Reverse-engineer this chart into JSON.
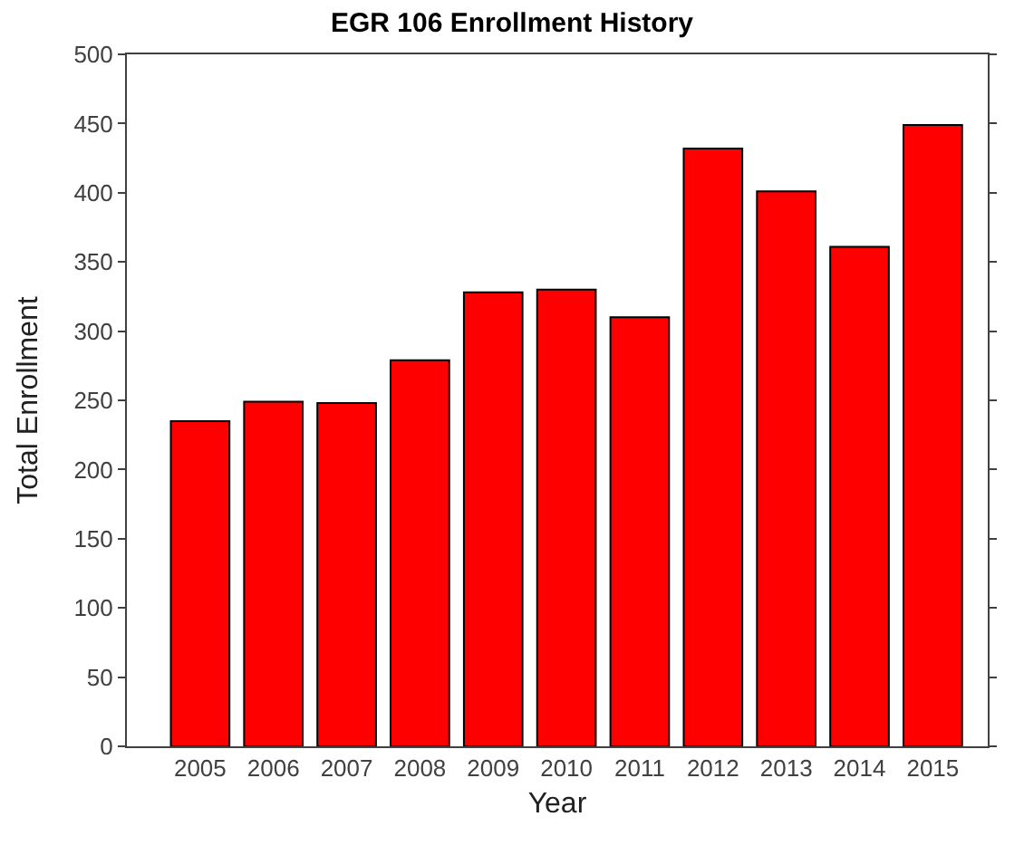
{
  "chart_data": {
    "type": "bar",
    "title": "EGR 106 Enrollment History",
    "xlabel": "Year",
    "ylabel": "Total Enrollment",
    "categories": [
      "2005",
      "2006",
      "2007",
      "2008",
      "2009",
      "2010",
      "2011",
      "2012",
      "2013",
      "2014",
      "2015"
    ],
    "values": [
      235,
      249,
      248,
      279,
      328,
      330,
      310,
      432,
      401,
      361,
      449
    ],
    "color": "#ff0000",
    "ylim": [
      0,
      500
    ],
    "yticks": [
      0,
      50,
      100,
      150,
      200,
      250,
      300,
      350,
      400,
      450,
      500
    ]
  }
}
